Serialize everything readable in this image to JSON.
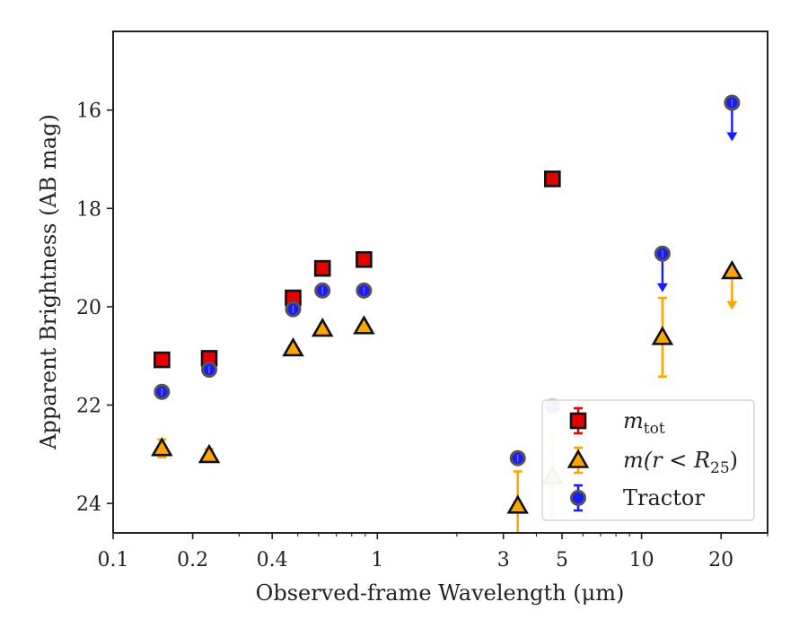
{
  "chart_data": {
    "type": "scatter",
    "xlabel": "Observed-frame Wavelength (μm)",
    "ylabel": "Apparent Brightness (AB mag)",
    "xscale": "log",
    "xlim": [
      0.1,
      30
    ],
    "ylim": [
      24.6,
      14.4
    ],
    "y_inverted": true,
    "grid": false,
    "legend_position": "lower-right",
    "x_ticks": [
      0.1,
      0.2,
      0.4,
      1,
      3,
      5,
      10,
      20
    ],
    "x_tick_labels": [
      "0.1",
      "0.2",
      "0.4",
      "1",
      "3",
      "5",
      "10",
      "20"
    ],
    "y_ticks": [
      16,
      18,
      20,
      22,
      24
    ],
    "y_tick_labels": [
      "16",
      "18",
      "20",
      "22",
      "24"
    ],
    "series": [
      {
        "name": "m_tot",
        "legend_label": {
          "main": "m",
          "sub": "tot"
        },
        "marker": "square",
        "color": "#e60000",
        "edge_color": "#111111",
        "points": [
          {
            "x": 0.153,
            "y": 21.08
          },
          {
            "x": 0.231,
            "y": 21.05
          },
          {
            "x": 0.48,
            "y": 19.82
          },
          {
            "x": 0.62,
            "y": 19.22
          },
          {
            "x": 0.89,
            "y": 19.04
          },
          {
            "x": 4.6,
            "y": 17.4
          }
        ]
      },
      {
        "name": "m(r<R25)",
        "legend_label": {
          "main": "m(r < R",
          "sub": "25",
          "tail": ")"
        },
        "marker": "triangle",
        "color": "#ffa500",
        "edge_color": "#111111",
        "points": [
          {
            "x": 0.153,
            "y": 22.88,
            "err": 0.18
          },
          {
            "x": 0.231,
            "y": 23.02,
            "err": 0.12
          },
          {
            "x": 0.48,
            "y": 20.85
          },
          {
            "x": 0.62,
            "y": 20.45
          },
          {
            "x": 0.89,
            "y": 20.4
          },
          {
            "x": 3.4,
            "y": 24.05,
            "err": 0.7
          },
          {
            "x": 4.6,
            "y": 23.45,
            "err": 0.8,
            "faded": true
          },
          {
            "x": 12.0,
            "y": 20.62,
            "err": 0.8
          },
          {
            "x": 22.0,
            "y": 19.28,
            "upper_limit": true
          }
        ]
      },
      {
        "name": "Tractor",
        "legend_label": {
          "main": "Tractor"
        },
        "marker": "circle",
        "color": "#1a1aff",
        "edge_color": "#555555",
        "points": [
          {
            "x": 0.153,
            "y": 21.73
          },
          {
            "x": 0.231,
            "y": 21.28
          },
          {
            "x": 0.48,
            "y": 20.05
          },
          {
            "x": 0.62,
            "y": 19.67
          },
          {
            "x": 0.89,
            "y": 19.67
          },
          {
            "x": 3.4,
            "y": 23.08
          },
          {
            "x": 4.6,
            "y": 22.02,
            "faded": true
          },
          {
            "x": 12.0,
            "y": 18.92,
            "upper_limit": true
          },
          {
            "x": 22.0,
            "y": 15.85,
            "upper_limit": true
          }
        ]
      }
    ]
  }
}
